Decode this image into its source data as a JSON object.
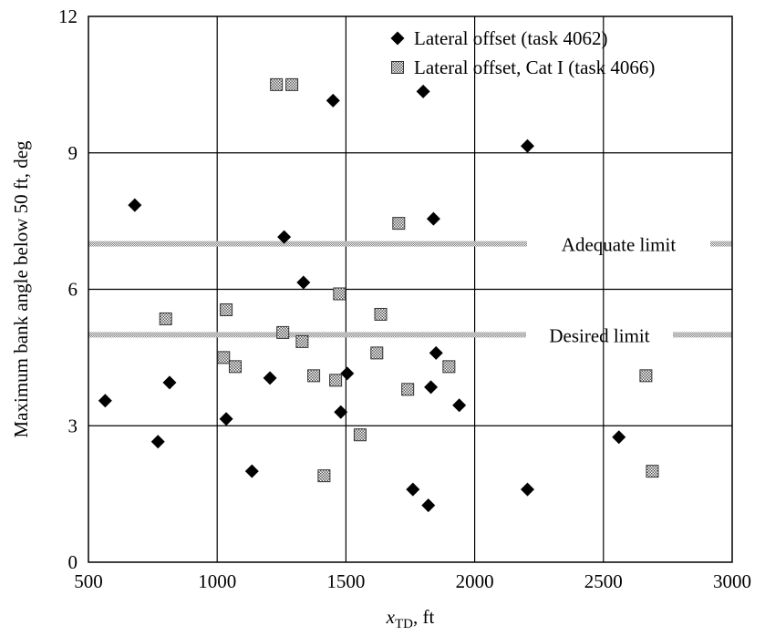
{
  "chart_data": {
    "type": "scatter",
    "xlabel": "x",
    "xlabel_sub": "TD",
    "xlabel_unit": ", ft",
    "ylabel": "Maximum bank angle below 50 ft, deg",
    "xlim": [
      500,
      3000
    ],
    "ylim": [
      0,
      12
    ],
    "x_ticks": [
      500,
      1000,
      1500,
      2000,
      2500,
      3000
    ],
    "y_ticks": [
      0,
      3,
      6,
      9,
      12
    ],
    "grid": true,
    "legend_position": "top-right",
    "series": [
      {
        "name": "Lateral offset (task 4062)",
        "marker": "diamond",
        "color": "#000000",
        "points": [
          [
            565,
            3.55
          ],
          [
            680,
            7.85
          ],
          [
            770,
            2.65
          ],
          [
            815,
            3.95
          ],
          [
            1035,
            3.15
          ],
          [
            1135,
            2.0
          ],
          [
            1205,
            4.05
          ],
          [
            1260,
            7.15
          ],
          [
            1335,
            6.15
          ],
          [
            1450,
            10.15
          ],
          [
            1480,
            3.3
          ],
          [
            1505,
            4.15
          ],
          [
            1760,
            1.6
          ],
          [
            1800,
            10.35
          ],
          [
            1820,
            1.25
          ],
          [
            1830,
            3.85
          ],
          [
            1840,
            7.55
          ],
          [
            1850,
            4.6
          ],
          [
            1940,
            3.45
          ],
          [
            2205,
            9.15
          ],
          [
            2205,
            1.6
          ],
          [
            2560,
            2.75
          ]
        ]
      },
      {
        "name": "Lateral offset, Cat I (task 4066)",
        "marker": "hatched-square",
        "color": "#555555",
        "points": [
          [
            800,
            5.35
          ],
          [
            1025,
            4.5
          ],
          [
            1035,
            5.55
          ],
          [
            1070,
            4.3
          ],
          [
            1230,
            10.5
          ],
          [
            1255,
            5.05
          ],
          [
            1290,
            10.5
          ],
          [
            1330,
            4.85
          ],
          [
            1375,
            4.1
          ],
          [
            1415,
            1.9
          ],
          [
            1460,
            4.0
          ],
          [
            1475,
            5.9
          ],
          [
            1555,
            2.8
          ],
          [
            1620,
            4.6
          ],
          [
            1635,
            5.45
          ],
          [
            1705,
            7.45
          ],
          [
            1740,
            3.8
          ],
          [
            1900,
            4.3
          ],
          [
            2665,
            4.1
          ],
          [
            2690,
            2.0
          ]
        ]
      }
    ],
    "limits": [
      {
        "label": "Adequate limit",
        "value": 7.0
      },
      {
        "label": "Desired limit",
        "value": 5.0
      }
    ]
  }
}
